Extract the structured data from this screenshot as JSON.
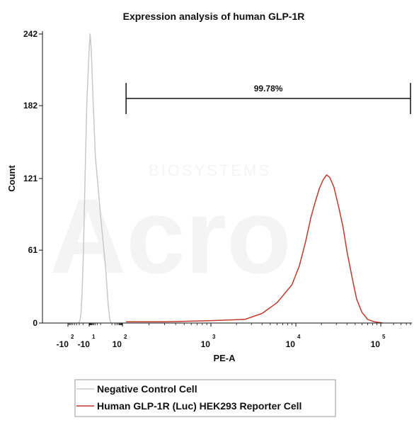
{
  "chart_data": {
    "type": "area",
    "title": "Expression analysis of human GLP-1R",
    "xlabel": "PE-A",
    "ylabel": "Count",
    "x_scale": "biexponential",
    "ylim": [
      0,
      242
    ],
    "yticks": [
      {
        "value": 0,
        "label": "0"
      },
      {
        "value": 61,
        "label": "61"
      },
      {
        "value": 121,
        "label": "121"
      },
      {
        "value": 182,
        "label": "182"
      },
      {
        "value": 242,
        "label": "242"
      }
    ],
    "xticks": [
      {
        "value": -100,
        "base": "-10",
        "exp": "2"
      },
      {
        "value": -10,
        "base": "-10",
        "exp": "1"
      },
      {
        "value": 100,
        "base": "10",
        "exp": "2"
      },
      {
        "value": 1000,
        "base": "10",
        "exp": "3"
      },
      {
        "value": 10000,
        "base": "10",
        "exp": "4"
      },
      {
        "value": 100000,
        "base": "10",
        "exp": "5"
      }
    ],
    "gate": {
      "label": "99.78%",
      "x_start": 110,
      "x_end": 500000,
      "y_level": 188
    },
    "series": [
      {
        "name": "Negative Control Cell",
        "color": "#c8c8c8",
        "points": [
          [
            -32,
            0
          ],
          [
            -28,
            2
          ],
          [
            -25,
            8
          ],
          [
            -22,
            25
          ],
          [
            -19,
            60
          ],
          [
            -16,
            120
          ],
          [
            -13,
            185
          ],
          [
            -10,
            230
          ],
          [
            -8,
            242
          ],
          [
            -6,
            228
          ],
          [
            -4,
            190
          ],
          [
            -2,
            140
          ],
          [
            0,
            90
          ],
          [
            2,
            45
          ],
          [
            4,
            15
          ],
          [
            6,
            3
          ],
          [
            8,
            0
          ]
        ]
      },
      {
        "name": "Human GLP-1R (Luc) HEK293 Reporter Cell",
        "color": "#c0392b",
        "points": [
          [
            110,
            1
          ],
          [
            300,
            1
          ],
          [
            1000,
            2
          ],
          [
            2500,
            3
          ],
          [
            4000,
            8
          ],
          [
            6000,
            17
          ],
          [
            9000,
            32
          ],
          [
            11000,
            48
          ],
          [
            13000,
            68
          ],
          [
            15000,
            88
          ],
          [
            17000,
            102
          ],
          [
            19000,
            113
          ],
          [
            21000,
            120
          ],
          [
            23000,
            124
          ],
          [
            25000,
            122
          ],
          [
            28000,
            114
          ],
          [
            32000,
            97
          ],
          [
            36000,
            80
          ],
          [
            40000,
            60
          ],
          [
            46000,
            38
          ],
          [
            52000,
            20
          ],
          [
            60000,
            9
          ],
          [
            70000,
            3
          ],
          [
            85000,
            1
          ],
          [
            110000,
            0
          ]
        ]
      }
    ],
    "legend": {
      "position": "bottom-left"
    }
  },
  "watermark": {
    "text": "Acro",
    "subtext": "BIOSYSTEMS"
  }
}
